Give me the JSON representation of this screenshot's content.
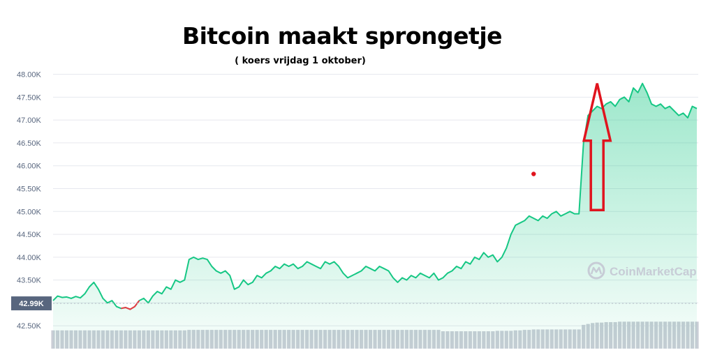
{
  "title": "Bitcoin maakt sprongetje",
  "subtitle": "( koers vrijdag 1 oktober)",
  "watermark": "CoinMarketCap",
  "chart_data": {
    "type": "area",
    "y_ticks": [
      "48.00K",
      "47.50K",
      "47.00K",
      "46.50K",
      "46.00K",
      "45.50K",
      "45.00K",
      "44.50K",
      "44.00K",
      "43.50K",
      "43.00K",
      "42.50K"
    ],
    "y_tick_values": [
      48000,
      47500,
      47000,
      46500,
      46000,
      45500,
      45000,
      44500,
      44000,
      43500,
      43000,
      42500
    ],
    "ylim": [
      42000,
      48100
    ],
    "reference_value": 42990,
    "reference_label": "42.99K",
    "grid": true,
    "colors": {
      "line": "#16c784",
      "fill": "#16c784",
      "below_open": "#ea3943",
      "volume": "#c9cdd6",
      "arrow": "#e0141e",
      "grid": "#e6e8ee",
      "tick": "#58667e"
    },
    "series": [
      {
        "values": [
          43050,
          43150,
          43120,
          43130,
          43100,
          43140,
          43110,
          43200,
          43350,
          43450,
          43300,
          43100,
          43000,
          43050,
          42920,
          42880,
          42900,
          42860,
          42920,
          43050,
          43100,
          43000,
          43150,
          43250,
          43200,
          43350,
          43300,
          43500,
          43450,
          43500,
          43950,
          44000,
          43950,
          43980,
          43950,
          43800,
          43700,
          43650,
          43700,
          43600,
          43300,
          43350,
          43500,
          43400,
          43450,
          43600,
          43550,
          43650,
          43700,
          43800,
          43750,
          43850,
          43800,
          43850,
          43750,
          43800,
          43900,
          43850,
          43800,
          43750,
          43900,
          43850,
          43900,
          43800,
          43650,
          43550,
          43600,
          43650,
          43700,
          43800,
          43750,
          43700,
          43800,
          43750,
          43700,
          43550,
          43450,
          43550,
          43500,
          43600,
          43550,
          43650,
          43600,
          43550,
          43650,
          43500,
          43550,
          43650,
          43700,
          43800,
          43750,
          43900,
          43850,
          44000,
          43950,
          44100,
          44000,
          44050,
          43900,
          44000,
          44200,
          44500,
          44700,
          44750,
          44800,
          44900,
          44850,
          44800,
          44900,
          44850,
          44950,
          45000,
          44900,
          44950,
          45000,
          44950,
          44950,
          46500,
          47100,
          47200,
          47300,
          47250,
          47350,
          47400,
          47300,
          47450,
          47500,
          47400,
          47700,
          47600,
          47800,
          47600,
          47350,
          47300,
          47350,
          47250,
          47300,
          47200,
          47100,
          47150,
          47050,
          47300,
          47250
        ],
        "volume": [
          42400,
          42400,
          42400,
          42400,
          42400,
          42400,
          42400,
          42400,
          42400,
          42400,
          42400,
          42400,
          42400,
          42400,
          42400,
          42400,
          42400,
          42400,
          42400,
          42400,
          42400,
          42400,
          42400,
          42400,
          42400,
          42400,
          42400,
          42400,
          42400,
          42400,
          42410,
          42410,
          42410,
          42410,
          42410,
          42410,
          42410,
          42410,
          42410,
          42410,
          42410,
          42410,
          42410,
          42410,
          42410,
          42410,
          42410,
          42410,
          42410,
          42410,
          42410,
          42410,
          42410,
          42410,
          42410,
          42410,
          42410,
          42410,
          42410,
          42410,
          42410,
          42410,
          42410,
          42410,
          42410,
          42410,
          42410,
          42410,
          42410,
          42410,
          42410,
          42410,
          42410,
          42410,
          42410,
          42410,
          42410,
          42410,
          42410,
          42410,
          42410,
          42410,
          42410,
          42410,
          42410,
          42410,
          42380,
          42380,
          42380,
          42380,
          42380,
          42380,
          42380,
          42380,
          42380,
          42380,
          42380,
          42380,
          42390,
          42390,
          42390,
          42390,
          42400,
          42400,
          42410,
          42410,
          42420,
          42420,
          42420,
          42420,
          42420,
          42420,
          42420,
          42420,
          42420,
          42420,
          42420,
          42520,
          42540,
          42560,
          42570,
          42570,
          42580,
          42580,
          42580,
          42590,
          42590,
          42590,
          42590,
          42590,
          42590,
          42590,
          42590,
          42590,
          42590,
          42590,
          42590,
          42590,
          42590,
          42590,
          42590,
          42590,
          42590
        ],
        "below_open_range": [
          15,
          19
        ]
      }
    ],
    "annotations": [
      {
        "type": "arrow",
        "direction": "up",
        "color": "red",
        "x_index": 120,
        "from_value": 45030,
        "to_value": 47800
      },
      {
        "type": "dot",
        "color": "red",
        "x_index": 106,
        "value": 45820
      }
    ]
  }
}
